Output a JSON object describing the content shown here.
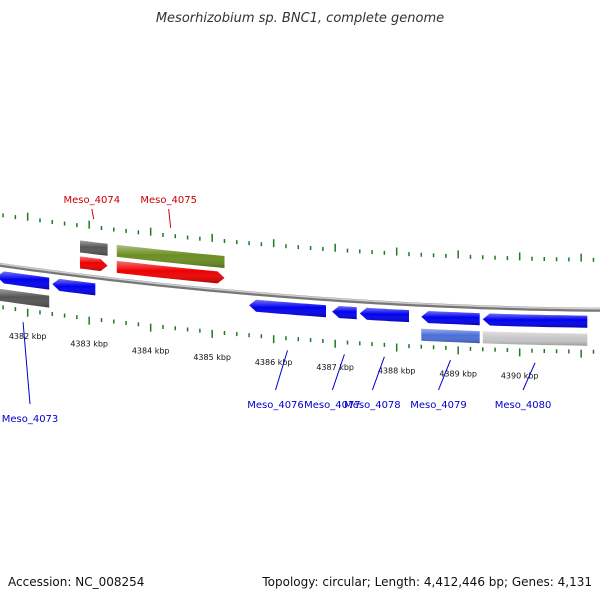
{
  "title": "Mesorhizobium sp. BNC1, complete genome",
  "footer": {
    "accession": "Accession: NC_008254",
    "summary": "Topology: circular; Length: 4,412,446 bp; Genes: 4,131"
  },
  "colors": {
    "tick": "#1f7a1f",
    "forward_label": "#cc0000",
    "reverse_label": "#0000cc",
    "backbone": "#8a8a8a"
  },
  "ticks": [
    {
      "kbp": 4382,
      "label": "4382 kbp"
    },
    {
      "kbp": 4383,
      "label": "4383 kbp"
    },
    {
      "kbp": 4384,
      "label": "4384 kbp"
    },
    {
      "kbp": 4385,
      "label": "4385 kbp"
    },
    {
      "kbp": 4386,
      "label": "4386 kbp"
    },
    {
      "kbp": 4387,
      "label": "4387 kbp"
    },
    {
      "kbp": 4388,
      "label": "4388 kbp"
    },
    {
      "kbp": 4389,
      "label": "4389 kbp"
    },
    {
      "kbp": 4390,
      "label": "4390 kbp"
    }
  ],
  "genes": [
    {
      "name": "Meso_4073",
      "strand": "-",
      "color": "#0000ee",
      "start_kbp": 4381.5,
      "end_kbp": 4382.35
    },
    {
      "name": "",
      "strand": "-",
      "color": "#0000ee",
      "start_kbp": 4382.4,
      "end_kbp": 4383.1
    },
    {
      "name": "Meso_4074",
      "strand": "+",
      "color": "#ee0000",
      "start_kbp": 4382.85,
      "end_kbp": 4383.3
    },
    {
      "name": "Meso_4075",
      "strand": "+",
      "color": "#ee0000",
      "start_kbp": 4383.45,
      "end_kbp": 4385.2
    },
    {
      "name": "Meso_4076",
      "strand": "-",
      "color": "#0000ee",
      "start_kbp": 4385.6,
      "end_kbp": 4386.85
    },
    {
      "name": "Meso_4077",
      "strand": "-",
      "color": "#0000ee",
      "start_kbp": 4386.95,
      "end_kbp": 4387.35
    },
    {
      "name": "Meso_4078",
      "strand": "-",
      "color": "#0000ee",
      "start_kbp": 4387.4,
      "end_kbp": 4388.2
    },
    {
      "name": "Meso_4079",
      "strand": "-",
      "color": "#0000ee",
      "start_kbp": 4388.4,
      "end_kbp": 4389.35
    },
    {
      "name": "Meso_4080",
      "strand": "-",
      "color": "#0000ee",
      "start_kbp": 4389.4,
      "end_kbp": 4391.1
    }
  ],
  "features": [
    {
      "strand": "-",
      "color": "#555555",
      "start_kbp": 4381.5,
      "end_kbp": 4382.35
    },
    {
      "strand": "+",
      "color": "#555555",
      "start_kbp": 4382.85,
      "end_kbp": 4383.3
    },
    {
      "strand": "+",
      "color": "#6b8e23",
      "start_kbp": 4383.45,
      "end_kbp": 4385.2
    },
    {
      "strand": "-",
      "color": "#4a6fd8",
      "start_kbp": 4388.4,
      "end_kbp": 4389.35
    },
    {
      "strand": "-",
      "color": "#c8c8c8",
      "start_kbp": 4389.4,
      "end_kbp": 4391.1
    }
  ]
}
